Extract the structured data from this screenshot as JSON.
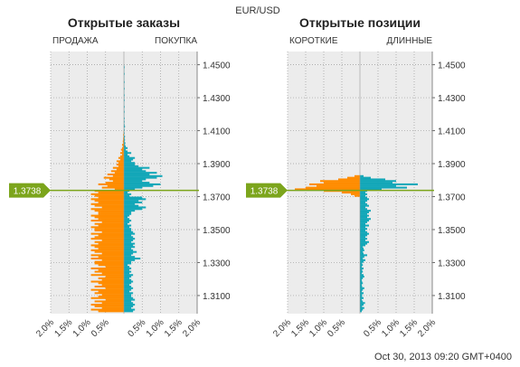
{
  "header": {
    "pair": "EUR/USD",
    "timestamp": "Oct 30, 2013 09:20 GMT+0400"
  },
  "colors": {
    "short": "#ff8c00",
    "long": "#13a7b8",
    "price_marker": "#7ca51c",
    "plot_bg": "#ececec",
    "grid": "#9a9a9a"
  },
  "current_price_label": "1.3738",
  "chart_data": [
    {
      "type": "bar",
      "orientation": "horizontal-butterfly",
      "title": "Открытые заказы",
      "left_label": "ПРОДАЖА",
      "right_label": "ПОКУПКА",
      "x_ticks": [
        "2.0%",
        "1.5%",
        "1.0%",
        "0.5%",
        "0.5%",
        "1.0%",
        "1.5%",
        "2.0%"
      ],
      "xlim": [
        -2.0,
        2.0
      ],
      "y_ticks": [
        "1.4500",
        "1.4300",
        "1.4100",
        "1.3900",
        "1.3700",
        "1.3500",
        "1.3300",
        "1.3100"
      ],
      "ylim": [
        1.299,
        1.458
      ],
      "current_price": 1.3738,
      "bin_size": 0.001,
      "series": [
        {
          "name": "ПРОДАЖА",
          "color": "orange",
          "segments": [
            {
              "from": 1.3,
              "to": 1.304,
              "values": [
                0.7,
                0.9,
                0.6,
                0.8
              ]
            },
            {
              "from": 1.304,
              "to": 1.31,
              "values": [
                0.9,
                0.6,
                0.8,
                0.5,
                0.9,
                0.7
              ]
            },
            {
              "from": 1.31,
              "to": 1.32,
              "values": [
                0.6,
                0.8,
                0.7,
                0.9,
                0.5,
                0.8,
                0.6,
                0.7,
                0.9,
                0.6
              ]
            },
            {
              "from": 1.32,
              "to": 1.33,
              "values": [
                0.7,
                0.5,
                0.9,
                0.6,
                0.8,
                0.7,
                0.9,
                0.5,
                0.7,
                0.8
              ]
            },
            {
              "from": 1.33,
              "to": 1.34,
              "values": [
                0.8,
                0.6,
                0.9,
                0.7,
                0.9,
                0.6,
                0.8,
                0.9,
                0.7,
                0.8
              ]
            },
            {
              "from": 1.34,
              "to": 1.35,
              "values": [
                0.9,
                0.7,
                0.8,
                0.6,
                0.9,
                0.8,
                0.7,
                0.9,
                0.6,
                0.8
              ]
            },
            {
              "from": 1.35,
              "to": 1.36,
              "values": [
                0.8,
                0.9,
                0.7,
                0.8,
                0.6,
                0.9,
                0.7,
                0.8,
                0.9,
                0.7
              ]
            },
            {
              "from": 1.36,
              "to": 1.37,
              "values": [
                0.7,
                0.8,
                0.9,
                0.6,
                0.8,
                0.9,
                0.7,
                0.8,
                0.9,
                0.7
              ]
            },
            {
              "from": 1.37,
              "to": 1.374,
              "values": [
                0.8,
                0.9,
                0.7,
                0.8
              ]
            },
            {
              "from": 1.374,
              "to": 1.38,
              "values": [
                0.25,
                0.6,
                0.45,
                0.7,
                0.5,
                0.3
              ]
            },
            {
              "from": 1.38,
              "to": 1.39,
              "values": [
                0.4,
                0.55,
                0.3,
                0.45,
                0.25,
                0.35,
                0.2,
                0.3,
                0.15,
                0.2
              ]
            },
            {
              "from": 1.39,
              "to": 1.4,
              "values": [
                0.15,
                0.2,
                0.1,
                0.15,
                0.1,
                0.05,
                0.1,
                0.05,
                0.08,
                0.05
              ]
            },
            {
              "from": 1.4,
              "to": 1.41,
              "values": [
                0.03,
                0.05,
                0.02,
                0.03,
                0.02,
                0.02,
                0.01,
                0.02,
                0.01,
                0.01
              ]
            }
          ]
        },
        {
          "name": "ПОКУПКА",
          "color": "teal",
          "segments": [
            {
              "from": 1.3,
              "to": 1.31,
              "values": [
                0.25,
                0.3,
                0.2,
                0.25,
                0.3,
                0.25,
                0.2,
                0.3,
                0.25,
                0.2
              ]
            },
            {
              "from": 1.31,
              "to": 1.32,
              "values": [
                0.2,
                0.25,
                0.15,
                0.2,
                0.25,
                0.2,
                0.15,
                0.2,
                0.25,
                0.2
              ]
            },
            {
              "from": 1.32,
              "to": 1.33,
              "values": [
                0.15,
                0.2,
                0.25,
                0.15,
                0.2,
                0.15,
                0.2,
                0.15,
                0.1,
                0.2
              ]
            },
            {
              "from": 1.33,
              "to": 1.34,
              "values": [
                0.2,
                0.3,
                0.45,
                0.3,
                0.2,
                0.25,
                0.35,
                0.25,
                0.2,
                0.3
              ]
            },
            {
              "from": 1.34,
              "to": 1.35,
              "values": [
                0.25,
                0.3,
                0.2,
                0.25,
                0.3,
                0.25,
                0.2,
                0.3,
                0.25,
                0.2
              ]
            },
            {
              "from": 1.35,
              "to": 1.36,
              "values": [
                0.2,
                0.15,
                0.2,
                0.1,
                0.15,
                0.2,
                0.15,
                0.1,
                0.15,
                0.2
              ]
            },
            {
              "from": 1.36,
              "to": 1.37,
              "values": [
                0.2,
                0.3,
                0.5,
                0.6,
                0.4,
                0.3,
                0.5,
                0.4,
                0.6,
                0.5
              ]
            },
            {
              "from": 1.37,
              "to": 1.374,
              "values": [
                0.15,
                0.2,
                0.1,
                0.15
              ]
            },
            {
              "from": 1.374,
              "to": 1.38,
              "values": [
                0.3,
                0.5,
                0.8,
                1.0,
                0.7,
                0.5
              ]
            },
            {
              "from": 1.38,
              "to": 1.39,
              "values": [
                0.6,
                0.9,
                1.05,
                0.7,
                0.9,
                0.6,
                0.5,
                0.7,
                0.4,
                0.3
              ]
            },
            {
              "from": 1.39,
              "to": 1.4,
              "values": [
                0.3,
                0.2,
                0.25,
                0.3,
                0.15,
                0.1,
                0.2,
                0.1,
                0.05,
                0.1
              ]
            },
            {
              "from": 1.4,
              "to": 1.42,
              "values": [
                0.05,
                0.03,
                0.04,
                0.02,
                0.03,
                0.02,
                0.03,
                0.01,
                0.02,
                0.01,
                0.02,
                0.01,
                0.03,
                0.02,
                0.01,
                0.02,
                0.01,
                0.02,
                0.01,
                0.01
              ]
            },
            {
              "from": 1.42,
              "to": 1.45,
              "values": [
                0.01,
                0.02,
                0.01,
                0.01,
                0.02,
                0.01,
                0.01,
                0.01,
                0.02,
                0.01,
                0.01,
                0.02,
                0.01,
                0.01,
                0.01,
                0.02,
                0.01,
                0.01,
                0.01,
                0.02,
                0.01,
                0.01,
                0.01,
                0.01,
                0.02,
                0.01,
                0.01,
                0.01,
                0.02,
                0.01
              ]
            }
          ]
        }
      ]
    },
    {
      "type": "bar",
      "orientation": "horizontal-butterfly",
      "title": "Открытые позиции",
      "left_label": "КОРОТКИЕ",
      "right_label": "ДЛИННЫЕ",
      "x_ticks": [
        "2.0%",
        "1.5%",
        "1.0%",
        "0.5%",
        "0.5%",
        "1.0%",
        "1.5%",
        "2.0%"
      ],
      "xlim": [
        -2.0,
        2.0
      ],
      "y_ticks": [
        "1.4500",
        "1.4300",
        "1.4100",
        "1.3900",
        "1.3700",
        "1.3500",
        "1.3300",
        "1.3100"
      ],
      "ylim": [
        1.299,
        1.458
      ],
      "current_price": 1.3738,
      "bin_size": 0.001,
      "series": [
        {
          "name": "КОРОТКИЕ",
          "color": "orange",
          "segments": [
            {
              "from": 1.37,
              "to": 1.374,
              "values": [
                0.15,
                0.25,
                0.5,
                1.0
              ]
            },
            {
              "from": 1.374,
              "to": 1.383,
              "values": [
                1.8,
                1.5,
                1.2,
                1.4,
                1.0,
                1.1,
                0.6,
                0.35,
                0.15
              ]
            }
          ]
        },
        {
          "name": "ДЛИННЫЕ",
          "color": "teal",
          "segments": [
            {
              "from": 1.3,
              "to": 1.31,
              "values": [
                0.05,
                0.08,
                0.12,
                0.06,
                0.1,
                0.14,
                0.08,
                0.05,
                0.1,
                0.06
              ]
            },
            {
              "from": 1.31,
              "to": 1.32,
              "values": [
                0.06,
                0.1,
                0.05,
                0.08,
                0.12,
                0.06,
                0.05,
                0.08,
                0.06,
                0.05
              ]
            },
            {
              "from": 1.32,
              "to": 1.33,
              "values": [
                0.08,
                0.12,
                0.1,
                0.05,
                0.08,
                0.06,
                0.1,
                0.05,
                0.08,
                0.06
              ]
            },
            {
              "from": 1.33,
              "to": 1.34,
              "values": [
                0.1,
                0.15,
                0.08,
                0.12,
                0.2,
                0.1,
                0.08,
                0.12,
                0.1,
                0.08
              ]
            },
            {
              "from": 1.34,
              "to": 1.35,
              "values": [
                0.15,
                0.2,
                0.25,
                0.15,
                0.2,
                0.15,
                0.2,
                0.25,
                0.2,
                0.15
              ]
            },
            {
              "from": 1.35,
              "to": 1.36,
              "values": [
                0.2,
                0.15,
                0.25,
                0.15,
                0.2,
                0.25,
                0.3,
                0.2,
                0.25,
                0.2
              ]
            },
            {
              "from": 1.36,
              "to": 1.37,
              "values": [
                0.25,
                0.3,
                0.2,
                0.15,
                0.25,
                0.2,
                0.15,
                0.2,
                0.25,
                0.2
              ]
            },
            {
              "from": 1.37,
              "to": 1.374,
              "values": [
                0.15,
                0.2,
                0.15,
                0.2
              ]
            },
            {
              "from": 1.374,
              "to": 1.383,
              "values": [
                0.6,
                1.3,
                1.0,
                1.6,
                0.9,
                1.0,
                0.7,
                0.3,
                0.1
              ]
            }
          ]
        }
      ]
    }
  ]
}
